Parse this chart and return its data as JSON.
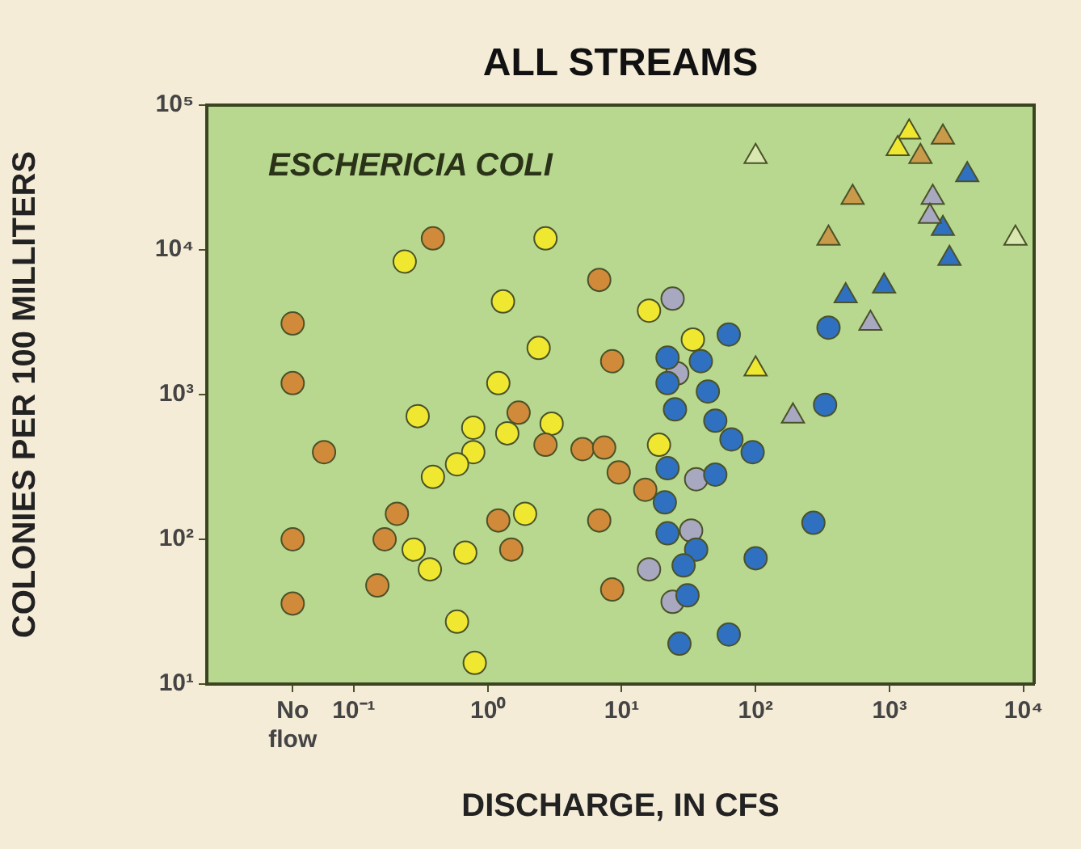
{
  "chart_data": {
    "type": "scatter",
    "title": "ALL STREAMS",
    "xlabel": "DISCHARGE, IN CFS",
    "ylabel": "COLONIES PER 100 MILLITERS",
    "annotations": [
      "ESCHERICIA COLI"
    ],
    "log": "xy",
    "grid": false,
    "legend": false,
    "marker": "circle",
    "xlim": [
      0.008,
      12000
    ],
    "ylim": [
      10,
      100000
    ],
    "xticks": [
      {
        "value": 0.035,
        "label": "No flow"
      },
      {
        "value": 0.1,
        "label": "10⁻¹"
      },
      {
        "value": 1,
        "label": "10⁰"
      },
      {
        "value": 10,
        "label": "10¹"
      },
      {
        "value": 100,
        "label": "10²"
      },
      {
        "value": 1000,
        "label": "10³"
      },
      {
        "value": 10000,
        "label": "10⁴"
      }
    ],
    "yticks": [
      {
        "value": 10,
        "label": "10¹"
      },
      {
        "value": 100,
        "label": "10²"
      },
      {
        "value": 1000,
        "label": "10³"
      },
      {
        "value": 10000,
        "label": "10⁴"
      },
      {
        "value": 100000,
        "label": "10⁵"
      }
    ],
    "series": [
      {
        "color": "#d08a3a",
        "x": [
          0.39,
          0.035,
          0.035,
          0.06,
          0.035,
          0.035,
          6.8,
          8.5,
          1.7,
          2.7,
          5.1,
          7.4,
          9.5,
          0.21,
          0.17,
          0.15,
          1.2,
          1.5,
          6.8,
          8.5,
          15
        ],
        "values": [
          12000,
          3100,
          1200,
          400,
          100,
          36,
          6200,
          1700,
          750,
          450,
          420,
          430,
          290,
          150,
          100,
          48,
          135,
          85,
          135,
          45,
          220
        ]
      },
      {
        "color": "#f0e830",
        "x": [
          0.24,
          2.7,
          1.3,
          2.4,
          1.2,
          0.3,
          0.78,
          0.78,
          0.59,
          0.39,
          1.4,
          3,
          1.9,
          0.28,
          0.37,
          0.68,
          0.59,
          0.8,
          16,
          34,
          19
        ],
        "values": [
          8300,
          12000,
          4400,
          2100,
          1200,
          710,
          590,
          400,
          330,
          270,
          540,
          630,
          150,
          85,
          62,
          81,
          27,
          14,
          3800,
          2400,
          450
        ]
      },
      {
        "color": "#2f70c0",
        "x": [
          63,
          22,
          39,
          22,
          44,
          25,
          50,
          66,
          95,
          50,
          22,
          21,
          22,
          36,
          31,
          27,
          63,
          100,
          270,
          330,
          350,
          29
        ],
        "values": [
          2600,
          1800,
          1700,
          1200,
          1050,
          790,
          660,
          490,
          400,
          280,
          310,
          180,
          110,
          85,
          41,
          19,
          22,
          74,
          130,
          850,
          2900,
          66
        ]
      },
      {
        "color": "#a8a8c0",
        "x": [
          24,
          26,
          36,
          16,
          24,
          33
        ],
        "values": [
          4600,
          1400,
          260,
          62,
          37,
          115
        ]
      },
      {
        "type": "scatter",
        "marker": "triangle",
        "color": "#d8e8b0",
        "x": [
          100,
          8700
        ],
        "values": [
          44000,
          12000
        ]
      },
      {
        "type": "scatter",
        "marker": "triangle",
        "color": "#c89a4a",
        "x": [
          350,
          530,
          2500,
          1700
        ],
        "values": [
          12000,
          23000,
          60000,
          44000
        ]
      },
      {
        "type": "scatter",
        "marker": "triangle",
        "color": "#f0e830",
        "x": [
          1400,
          1150,
          100
        ],
        "values": [
          65000,
          50000,
          1500
        ]
      },
      {
        "type": "scatter",
        "marker": "triangle",
        "color": "#a8a8c0",
        "x": [
          720,
          190,
          2100,
          2000
        ],
        "values": [
          3100,
          710,
          23000,
          17000
        ]
      },
      {
        "type": "scatter",
        "marker": "triangle",
        "color": "#2f70c0",
        "x": [
          3800,
          2800,
          470,
          910,
          2500
        ],
        "values": [
          33000,
          8700,
          4800,
          5600,
          14000
        ]
      }
    ]
  }
}
